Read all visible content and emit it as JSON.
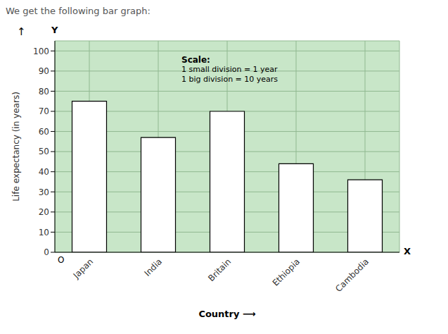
{
  "chart_data": {
    "type": "bar",
    "title": "We get the following bar graph:",
    "categories": [
      "Japan",
      "India",
      "Britain",
      "Ethiopia",
      "Cambodia"
    ],
    "values": [
      75,
      57,
      70,
      44,
      36
    ],
    "color": "white",
    "ylim": [
      0,
      105
    ],
    "yticks": [
      0,
      10,
      20,
      30,
      40,
      50,
      60,
      70,
      80,
      90,
      100
    ],
    "ylabel": "Life expectancy (in years)",
    "xlabel": "Country  ⟶",
    "grid": true,
    "annotations": [
      "Scale:",
      "1 small division = 1 year",
      "1 big division = 10 years"
    ],
    "axis_label_x": "X",
    "axis_label_y": "Y",
    "origin_label": "O",
    "y_arrow": "↑"
  }
}
